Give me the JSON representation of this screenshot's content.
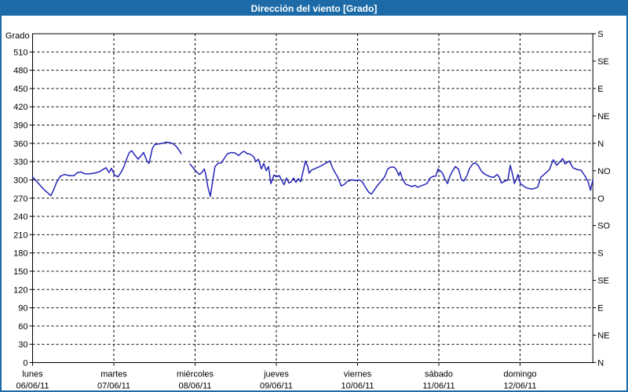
{
  "window": {
    "title": "Dirección del viento [Grado]"
  },
  "colors": {
    "titlebar": "#1c6ba8",
    "border": "#1c6ba8",
    "line": "#2424b8",
    "grid": "#000000",
    "background": "#ffffff"
  },
  "chart_data": {
    "type": "line",
    "title": "Dirección del viento [Grado]",
    "ylabel": "Grado",
    "ylim": [
      0,
      540
    ],
    "grid": "dashed",
    "legend": "none",
    "y_left_ticks": [
      0,
      30,
      60,
      90,
      120,
      150,
      180,
      210,
      240,
      270,
      300,
      330,
      360,
      390,
      420,
      450,
      480,
      510
    ],
    "y_right_ticks": [
      {
        "deg": 540,
        "label": "S"
      },
      {
        "deg": 495,
        "label": "SE"
      },
      {
        "deg": 450,
        "label": "E"
      },
      {
        "deg": 405,
        "label": "NE"
      },
      {
        "deg": 360,
        "label": "N"
      },
      {
        "deg": 315,
        "label": "NO"
      },
      {
        "deg": 270,
        "label": "O"
      },
      {
        "deg": 225,
        "label": "SO"
      },
      {
        "deg": 180,
        "label": "S"
      },
      {
        "deg": 135,
        "label": "SE"
      },
      {
        "deg": 90,
        "label": "E"
      },
      {
        "deg": 45,
        "label": "NE"
      },
      {
        "deg": 0,
        "label": "N"
      }
    ],
    "x_days": [
      {
        "name": "lunes",
        "date": "06/06/11"
      },
      {
        "name": "martes",
        "date": "07/06/11"
      },
      {
        "name": "miércoles",
        "date": "08/06/11"
      },
      {
        "name": "jueves",
        "date": "09/06/11"
      },
      {
        "name": "viernes",
        "date": "10/06/11"
      },
      {
        "name": "sábado",
        "date": "11/06/11"
      },
      {
        "name": "domingo",
        "date": "12/06/11"
      }
    ],
    "x_unit": "hours from lunes 06/06/11 00:00",
    "x_range_hours": 165.5,
    "series": {
      "name": "Dirección del viento",
      "unit": "Grado",
      "segments": [
        [
          [
            0,
            305
          ],
          [
            1.3,
            297
          ],
          [
            2.4,
            290
          ],
          [
            3.6,
            283
          ],
          [
            4.8,
            277
          ],
          [
            5.4,
            274
          ],
          [
            6.1,
            282
          ],
          [
            7.1,
            296
          ],
          [
            8.2,
            306
          ],
          [
            9.4,
            309
          ],
          [
            10.8,
            307
          ],
          [
            12.2,
            307
          ],
          [
            13.3,
            312
          ],
          [
            14.3,
            313
          ],
          [
            15.4,
            310
          ],
          [
            16.8,
            310
          ],
          [
            18.2,
            311
          ],
          [
            19.6,
            313
          ],
          [
            20.8,
            317
          ],
          [
            21.7,
            320
          ],
          [
            22.6,
            312
          ],
          [
            23.3,
            319
          ],
          [
            24.2,
            308
          ],
          [
            25.2,
            305
          ],
          [
            26.1,
            312
          ],
          [
            27,
            322
          ],
          [
            27.9,
            336
          ],
          [
            28.6,
            345
          ],
          [
            29.3,
            348
          ],
          [
            30.3,
            340
          ],
          [
            31.2,
            334
          ],
          [
            32.1,
            340
          ],
          [
            32.8,
            345
          ],
          [
            33.7,
            332
          ],
          [
            34.4,
            327
          ],
          [
            35.4,
            352
          ],
          [
            36.1,
            358
          ],
          [
            37.2,
            359
          ],
          [
            38.4,
            360
          ],
          [
            39.5,
            362
          ],
          [
            40.7,
            361
          ],
          [
            41.6,
            359
          ],
          [
            42.6,
            354
          ],
          [
            43.5,
            347
          ],
          [
            43.9,
            343
          ]
        ],
        [
          [
            46.5,
            326
          ],
          [
            47.4,
            320
          ],
          [
            48.3,
            314
          ],
          [
            49.3,
            309
          ],
          [
            50,
            312
          ],
          [
            50.7,
            318
          ],
          [
            51.1,
            310
          ],
          [
            51.8,
            288
          ],
          [
            52.5,
            273
          ],
          [
            53.2,
            298
          ],
          [
            53.9,
            322
          ],
          [
            54.8,
            327
          ],
          [
            55.8,
            328
          ],
          [
            56.7,
            336
          ],
          [
            57.6,
            343
          ],
          [
            58.8,
            345
          ],
          [
            59.9,
            344
          ],
          [
            60.9,
            340
          ],
          [
            61.8,
            345
          ],
          [
            62.5,
            347
          ],
          [
            63.4,
            343
          ],
          [
            64.4,
            342
          ],
          [
            65.3,
            338
          ],
          [
            66,
            330
          ],
          [
            66.7,
            334
          ],
          [
            67.6,
            318
          ],
          [
            68.3,
            327
          ],
          [
            69,
            315
          ],
          [
            69.7,
            322
          ],
          [
            70.4,
            294
          ],
          [
            71.3,
            308
          ],
          [
            72,
            305
          ],
          [
            72.9,
            307
          ],
          [
            73.6,
            299
          ],
          [
            74.3,
            292
          ],
          [
            75,
            303
          ],
          [
            75.7,
            295
          ],
          [
            76.4,
            297
          ],
          [
            77.1,
            303
          ],
          [
            77.8,
            296
          ],
          [
            78.5,
            302
          ],
          [
            79.2,
            297
          ],
          [
            79.9,
            314
          ],
          [
            80.6,
            331
          ],
          [
            81.3,
            322
          ],
          [
            81.7,
            311
          ],
          [
            82.4,
            316
          ],
          [
            83.6,
            319
          ],
          [
            84.8,
            322
          ],
          [
            85.9,
            325
          ],
          [
            87.1,
            329
          ],
          [
            87.8,
            331
          ],
          [
            88.9,
            316
          ],
          [
            90.1,
            305
          ],
          [
            91.2,
            290
          ],
          [
            92.2,
            293
          ],
          [
            93.1,
            298
          ],
          [
            94.3,
            300
          ],
          [
            95.4,
            299
          ],
          [
            96.6,
            300
          ],
          [
            97.5,
            296
          ],
          [
            98.4,
            287
          ],
          [
            99.4,
            279
          ],
          [
            100.1,
            277
          ],
          [
            101,
            284
          ],
          [
            101.9,
            291
          ],
          [
            102.8,
            297
          ],
          [
            104,
            305
          ],
          [
            104.9,
            318
          ],
          [
            105.8,
            321
          ],
          [
            106.8,
            321
          ],
          [
            107.5,
            316
          ],
          [
            108.2,
            307
          ],
          [
            108.6,
            313
          ],
          [
            109.3,
            301
          ],
          [
            110.2,
            293
          ],
          [
            111.2,
            291
          ],
          [
            112.1,
            289
          ],
          [
            113,
            291
          ],
          [
            113.7,
            288
          ],
          [
            114.7,
            290
          ],
          [
            115.6,
            292
          ],
          [
            116.5,
            294
          ],
          [
            117.4,
            303
          ],
          [
            118.4,
            306
          ],
          [
            119.1,
            306
          ],
          [
            119.8,
            318
          ],
          [
            120.4,
            315
          ],
          [
            121.1,
            311
          ],
          [
            121.9,
            300
          ],
          [
            122.6,
            294
          ],
          [
            123.2,
            305
          ],
          [
            123.9,
            313
          ],
          [
            124.9,
            322
          ],
          [
            125.8,
            318
          ],
          [
            126.7,
            300
          ],
          [
            127.4,
            298
          ],
          [
            128.4,
            308
          ],
          [
            129,
            318
          ],
          [
            130,
            326
          ],
          [
            130.7,
            328
          ],
          [
            131.6,
            324
          ],
          [
            132.5,
            315
          ],
          [
            133.4,
            310
          ],
          [
            134.4,
            307
          ],
          [
            135.3,
            305
          ],
          [
            136.2,
            304
          ],
          [
            137.2,
            309
          ],
          [
            137.8,
            305
          ],
          [
            138.5,
            295
          ],
          [
            139.5,
            298
          ],
          [
            140.4,
            300
          ],
          [
            141.1,
            324
          ],
          [
            141.8,
            309
          ],
          [
            142.3,
            294
          ],
          [
            143,
            302
          ],
          [
            143.4,
            309
          ],
          [
            144.1,
            294
          ],
          [
            144.8,
            291
          ],
          [
            145.5,
            288
          ],
          [
            146.4,
            286
          ],
          [
            147.4,
            285
          ],
          [
            148.3,
            286
          ],
          [
            149.2,
            288
          ],
          [
            150.1,
            304
          ],
          [
            151.3,
            310
          ],
          [
            152.7,
            317
          ],
          [
            153.8,
            333
          ],
          [
            154.8,
            324
          ],
          [
            155.5,
            328
          ],
          [
            156.6,
            335
          ],
          [
            157.3,
            326
          ],
          [
            158.5,
            331
          ],
          [
            159.6,
            320
          ],
          [
            160.8,
            317
          ],
          [
            162,
            316
          ],
          [
            163.1,
            307
          ],
          [
            164.1,
            297
          ],
          [
            164.8,
            283
          ],
          [
            165.5,
            300
          ]
        ]
      ]
    }
  }
}
